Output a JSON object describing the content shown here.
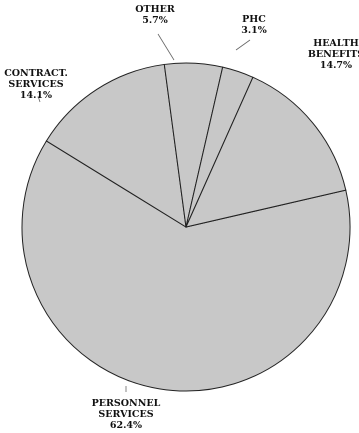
{
  "chart_data": {
    "type": "pie",
    "slices": [
      {
        "label": [
          "PERSONNEL",
          "SERVICES"
        ],
        "value": 62.4,
        "display": "62.4%"
      },
      {
        "label": [
          "CONTRACT.",
          "SERVICES"
        ],
        "value": 14.1,
        "display": "14.1%"
      },
      {
        "label": [
          "OTHER"
        ],
        "value": 5.7,
        "display": "5.7%"
      },
      {
        "label": [
          "PHC"
        ],
        "value": 3.1,
        "display": "3.1%"
      },
      {
        "label": [
          "HEALTH",
          "BENEFITS"
        ],
        "value": 14.7,
        "display": "14.7%"
      }
    ],
    "colors": {
      "fill": "#c8c8c8",
      "stroke": "#222222"
    },
    "legend": "none"
  }
}
